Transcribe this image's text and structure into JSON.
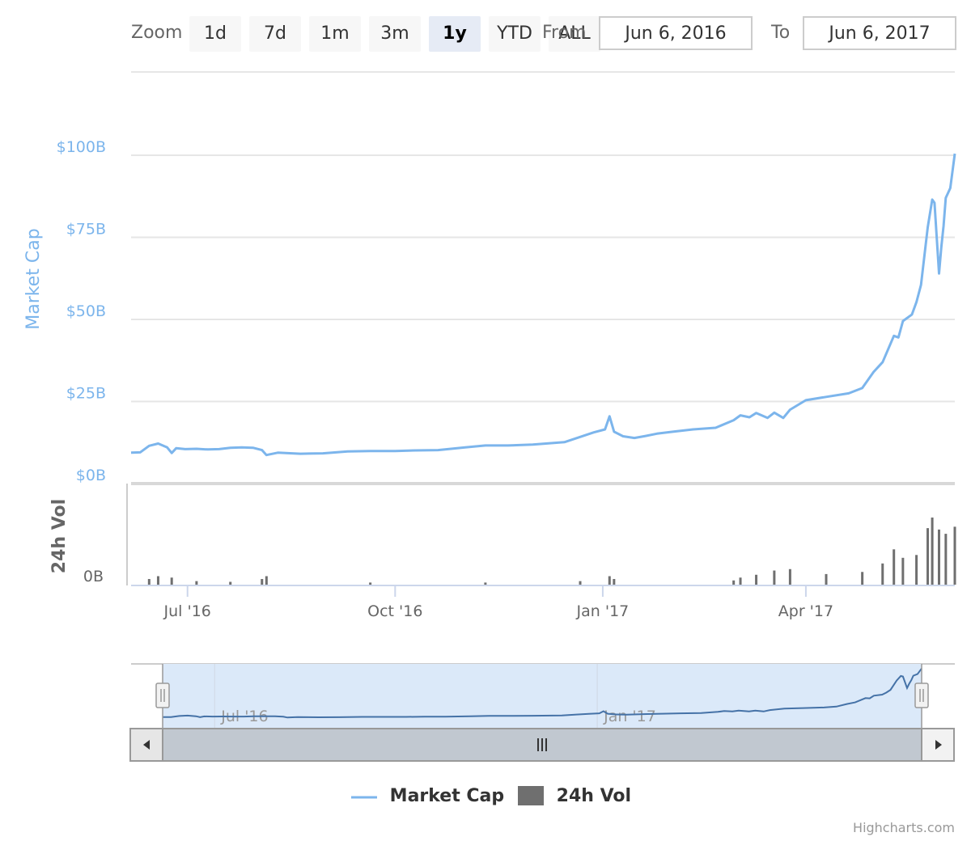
{
  "range_selector": {
    "zoom_label": "Zoom",
    "buttons": [
      {
        "label": "1d",
        "active": false
      },
      {
        "label": "7d",
        "active": false
      },
      {
        "label": "1m",
        "active": false
      },
      {
        "label": "3m",
        "active": false
      },
      {
        "label": "1y",
        "active": true
      },
      {
        "label": "YTD",
        "active": false
      },
      {
        "label": "ALL",
        "active": false
      }
    ],
    "from_label": "From",
    "from_value": "Jun 6, 2016",
    "to_label": "To",
    "to_value": "Jun 6, 2017"
  },
  "colors": {
    "market_cap": "#7cb5ec",
    "volume": "#6f6f6f",
    "navigator_fill": "#dbe9f9",
    "scrollbar": "#c1c8d0"
  },
  "legend": {
    "items": [
      {
        "name": "Market Cap",
        "symbol": "line"
      },
      {
        "name": "24h Vol",
        "symbol": "bar"
      }
    ]
  },
  "credits": "Highcharts.com",
  "chart_data": {
    "type": "line",
    "x_range": [
      "2016-06-06",
      "2017-06-06"
    ],
    "x_ticks": [
      {
        "date": "2016-07-01",
        "label": "Jul '16"
      },
      {
        "date": "2016-10-01",
        "label": "Oct '16"
      },
      {
        "date": "2017-01-01",
        "label": "Jan '17"
      },
      {
        "date": "2017-04-01",
        "label": "Apr '17"
      }
    ],
    "navigator_ticks": [
      {
        "date": "2016-07-01",
        "label": "Jul '16"
      },
      {
        "date": "2017-01-01",
        "label": "Jan '17"
      }
    ],
    "market_cap_axis": {
      "title": "Market Cap",
      "ylim": [
        0,
        100
      ],
      "ticks": [
        {
          "value": 0,
          "label": "$0B"
        },
        {
          "value": 25,
          "label": "$25B"
        },
        {
          "value": 50,
          "label": "$50B"
        },
        {
          "value": 75,
          "label": "$75B"
        },
        {
          "value": 100,
          "label": "$100B"
        }
      ]
    },
    "volume_axis": {
      "title": "24h Vol",
      "ticks": [
        {
          "value": 0,
          "label": "0B"
        }
      ]
    },
    "series": [
      {
        "name": "Market Cap",
        "type": "line",
        "unit": "billion USD",
        "points": [
          [
            "2016-06-06",
            9.4
          ],
          [
            "2016-06-10",
            9.5
          ],
          [
            "2016-06-14",
            11.5
          ],
          [
            "2016-06-18",
            12.2
          ],
          [
            "2016-06-22",
            11.0
          ],
          [
            "2016-06-24",
            9.3
          ],
          [
            "2016-06-26",
            10.8
          ],
          [
            "2016-06-30",
            10.5
          ],
          [
            "2016-07-05",
            10.6
          ],
          [
            "2016-07-10",
            10.4
          ],
          [
            "2016-07-15",
            10.5
          ],
          [
            "2016-07-20",
            10.9
          ],
          [
            "2016-07-25",
            11.0
          ],
          [
            "2016-07-30",
            10.9
          ],
          [
            "2016-08-03",
            10.2
          ],
          [
            "2016-08-05",
            8.7
          ],
          [
            "2016-08-10",
            9.4
          ],
          [
            "2016-08-20",
            9.1
          ],
          [
            "2016-08-30",
            9.2
          ],
          [
            "2016-09-10",
            9.8
          ],
          [
            "2016-09-20",
            9.9
          ],
          [
            "2016-10-01",
            9.9
          ],
          [
            "2016-10-10",
            10.1
          ],
          [
            "2016-10-20",
            10.2
          ],
          [
            "2016-11-01",
            11.0
          ],
          [
            "2016-11-10",
            11.6
          ],
          [
            "2016-11-20",
            11.6
          ],
          [
            "2016-12-01",
            11.9
          ],
          [
            "2016-12-15",
            12.6
          ],
          [
            "2016-12-22",
            14.2
          ],
          [
            "2016-12-28",
            15.6
          ],
          [
            "2017-01-02",
            16.5
          ],
          [
            "2017-01-04",
            20.5
          ],
          [
            "2017-01-06",
            15.8
          ],
          [
            "2017-01-10",
            14.4
          ],
          [
            "2017-01-15",
            13.9
          ],
          [
            "2017-01-20",
            14.5
          ],
          [
            "2017-01-25",
            15.2
          ],
          [
            "2017-02-01",
            15.8
          ],
          [
            "2017-02-10",
            16.5
          ],
          [
            "2017-02-20",
            17.0
          ],
          [
            "2017-02-28",
            19.3
          ],
          [
            "2017-03-03",
            20.8
          ],
          [
            "2017-03-07",
            20.2
          ],
          [
            "2017-03-10",
            21.5
          ],
          [
            "2017-03-15",
            20.0
          ],
          [
            "2017-03-18",
            21.6
          ],
          [
            "2017-03-22",
            20.0
          ],
          [
            "2017-03-25",
            22.5
          ],
          [
            "2017-04-01",
            25.4
          ],
          [
            "2017-04-10",
            26.4
          ],
          [
            "2017-04-20",
            27.5
          ],
          [
            "2017-04-26",
            29.1
          ],
          [
            "2017-05-01",
            34.0
          ],
          [
            "2017-05-05",
            37.0
          ],
          [
            "2017-05-10",
            45.0
          ],
          [
            "2017-05-12",
            44.5
          ],
          [
            "2017-05-14",
            49.5
          ],
          [
            "2017-05-18",
            51.5
          ],
          [
            "2017-05-20",
            55.3
          ],
          [
            "2017-05-22",
            60.5
          ],
          [
            "2017-05-25",
            78.0
          ],
          [
            "2017-05-27",
            86.5
          ],
          [
            "2017-05-28",
            85.5
          ],
          [
            "2017-05-30",
            64.0
          ],
          [
            "2017-05-31",
            72.0
          ],
          [
            "2017-06-01",
            78.5
          ],
          [
            "2017-06-02",
            87.0
          ],
          [
            "2017-06-04",
            90.0
          ],
          [
            "2017-06-06",
            100.5
          ]
        ]
      },
      {
        "name": "24h Vol",
        "type": "column",
        "points": [
          [
            "2016-06-14",
            0.08
          ],
          [
            "2016-06-18",
            0.12
          ],
          [
            "2016-06-24",
            0.1
          ],
          [
            "2016-07-05",
            0.05
          ],
          [
            "2016-07-20",
            0.04
          ],
          [
            "2016-08-03",
            0.08
          ],
          [
            "2016-08-05",
            0.12
          ],
          [
            "2016-09-20",
            0.03
          ],
          [
            "2016-11-10",
            0.03
          ],
          [
            "2016-12-22",
            0.05
          ],
          [
            "2017-01-04",
            0.12
          ],
          [
            "2017-01-06",
            0.08
          ],
          [
            "2017-02-28",
            0.06
          ],
          [
            "2017-03-03",
            0.1
          ],
          [
            "2017-03-10",
            0.14
          ],
          [
            "2017-03-18",
            0.2
          ],
          [
            "2017-03-25",
            0.22
          ],
          [
            "2017-04-10",
            0.15
          ],
          [
            "2017-04-26",
            0.18
          ],
          [
            "2017-05-05",
            0.3
          ],
          [
            "2017-05-10",
            0.5
          ],
          [
            "2017-05-14",
            0.38
          ],
          [
            "2017-05-20",
            0.42
          ],
          [
            "2017-05-25",
            0.8
          ],
          [
            "2017-05-27",
            0.95
          ],
          [
            "2017-05-30",
            0.78
          ],
          [
            "2017-06-02",
            0.72
          ],
          [
            "2017-06-06",
            0.82
          ]
        ]
      }
    ]
  }
}
